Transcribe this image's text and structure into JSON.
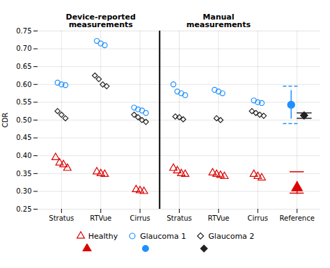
{
  "chart_data": {
    "type": "scatter",
    "ylabel": "CDR",
    "annotations": [
      "Device-reported\nmeasurements",
      "Manual\nmeasurements"
    ],
    "categories": [
      "Stratus",
      "RTVue",
      "Cirrus",
      "Stratus",
      "RTVue",
      "Cirrus",
      "Reference"
    ],
    "series": [
      {
        "name": "Healthy",
        "color": "#dd0000",
        "marker": "triangle",
        "line_style": "solid",
        "values": [
          [
            0.395,
            0.38,
            0.375,
            0.365
          ],
          [
            0.355,
            0.35,
            0.348
          ],
          [
            0.305,
            0.302,
            0.3
          ],
          [
            0.365,
            0.358,
            0.35,
            0.348
          ],
          [
            0.352,
            0.348,
            0.345,
            0.342
          ],
          [
            0.348,
            0.342,
            0.338
          ],
          null
        ],
        "reference": {
          "mean": 0.31,
          "err": 0.018,
          "whisker_top": 0.355,
          "whisker_bottom": 0.295
        }
      },
      {
        "name": "Glaucoma 1",
        "color": "#1e90ff",
        "marker": "circle",
        "line_style": "dashed",
        "values": [
          [
            0.605,
            0.6,
            0.598
          ],
          [
            0.722,
            0.715,
            0.71
          ],
          [
            0.535,
            0.53,
            0.527,
            0.52
          ],
          [
            0.6,
            0.58,
            0.575,
            0.57
          ],
          [
            0.585,
            0.58,
            0.575
          ],
          [
            0.555,
            0.55,
            0.548
          ],
          null
        ],
        "reference": {
          "mean": 0.543,
          "err": 0.04,
          "whisker_top": 0.595,
          "whisker_bottom": 0.49
        }
      },
      {
        "name": "Glaucoma 2",
        "color": "#222222",
        "marker": "diamond",
        "line_style": "solid",
        "values": [
          [
            0.525,
            0.515,
            0.505
          ],
          [
            0.625,
            0.615,
            0.6,
            0.595
          ],
          [
            0.515,
            0.508,
            0.5,
            0.495
          ],
          [
            0.51,
            0.508,
            0.502
          ],
          [
            0.505,
            0.5
          ],
          [
            0.525,
            0.52,
            0.515,
            0.512
          ],
          null
        ],
        "reference": {
          "mean": 0.513,
          "err": 0.006,
          "whisker_top": 0.52,
          "whisker_bottom": 0.505
        }
      }
    ],
    "ylim": [
      0.25,
      0.75
    ],
    "yticks": [
      0.25,
      {
        "value": 0.3,
        "label": "0.30"
      },
      0.35,
      {
        "value": 0.4,
        "label": "0.40"
      },
      0.45,
      {
        "value": 0.5,
        "label": "0.50"
      },
      0.55,
      {
        "value": 0.6,
        "label": "0.60"
      },
      0.65,
      {
        "value": 0.7,
        "label": "0.70"
      },
      0.75
    ],
    "grid": true,
    "legend": "bottom"
  }
}
